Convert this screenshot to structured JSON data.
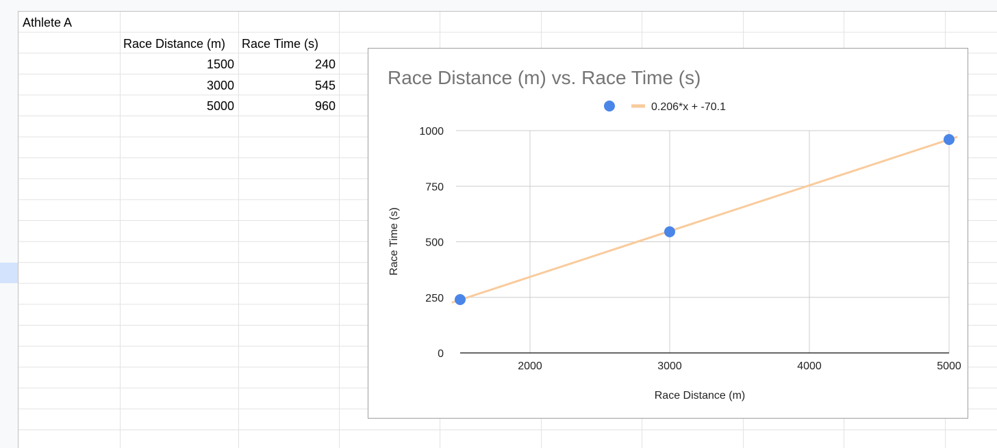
{
  "spreadsheet": {
    "title_cell": "Athlete A",
    "headers": [
      "Race Distance (m)",
      "Race Time (s)"
    ],
    "rows": [
      {
        "distance": "1500",
        "time": "240"
      },
      {
        "distance": "3000",
        "time": "545"
      },
      {
        "distance": "5000",
        "time": "960"
      }
    ],
    "selected_row_color": "#d3e3fd"
  },
  "chart_data": {
    "type": "scatter",
    "title": "Race Distance (m) vs. Race Time (s)",
    "xlabel": "Race Distance (m)",
    "ylabel": "Race Time (s)",
    "xlim": [
      1500,
      5000
    ],
    "ylim": [
      0,
      1000
    ],
    "x_ticks": [
      "2000",
      "3000",
      "4000",
      "5000"
    ],
    "y_ticks": [
      "0",
      "250",
      "500",
      "750",
      "1000"
    ],
    "grid": true,
    "legend_position": "top",
    "series": [
      {
        "x": [
          1500,
          3000,
          5000
        ],
        "y": [
          240,
          545,
          960
        ],
        "color": "#4a86e8"
      }
    ],
    "trendline": {
      "label": "0.206*x + -70.1",
      "slope": 0.206,
      "intercept": -70.1,
      "color": "#f9cb9c"
    }
  }
}
